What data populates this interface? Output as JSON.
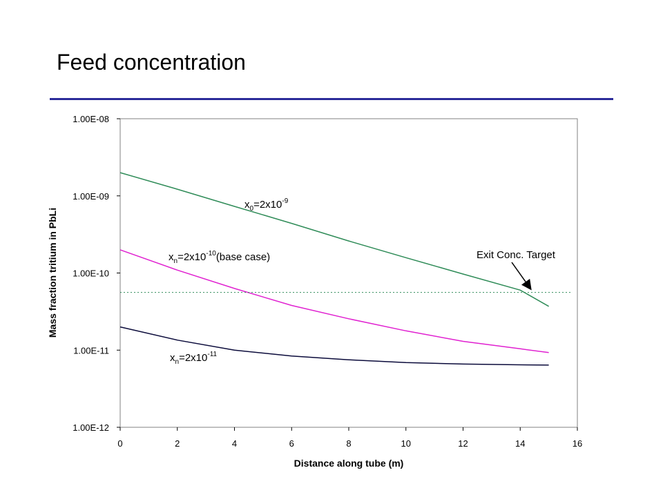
{
  "slide": {
    "title": "Feed concentration"
  },
  "chart_data": {
    "type": "line",
    "title": "",
    "xlabel": "Distance along tube (m)",
    "ylabel": "Mass fraction tritium in PbLi",
    "xlim": [
      0,
      16
    ],
    "ylim": [
      1e-12,
      1e-08
    ],
    "yscale": "log",
    "grid": false,
    "x_ticks": [
      "0",
      "2",
      "4",
      "6",
      "8",
      "10",
      "12",
      "14",
      "16"
    ],
    "y_ticks": [
      "1.00E-12",
      "1.00E-11",
      "1.00E-10",
      "1.00E-09",
      "1.00E-08"
    ],
    "series": [
      {
        "color": "#2e8b57",
        "x": [
          0,
          2,
          4,
          6,
          8,
          10,
          12,
          14,
          15
        ],
        "y": [
          2e-09,
          1.22e-09,
          7.3e-10,
          4.4e-10,
          2.6e-10,
          1.58e-10,
          9.7e-11,
          6e-11,
          3.7e-11
        ]
      },
      {
        "color": "#e020d0",
        "x": [
          0,
          2,
          4,
          6,
          8,
          10,
          12,
          14,
          15
        ],
        "y": [
          2e-10,
          1.09e-10,
          6.3e-11,
          3.8e-11,
          2.55e-11,
          1.78e-11,
          1.3e-11,
          1.04e-11,
          9.3e-12
        ]
      },
      {
        "color": "#0a0a3a",
        "x": [
          0,
          2,
          4,
          6,
          8,
          10,
          12,
          14,
          15
        ],
        "y": [
          2e-11,
          1.35e-11,
          1e-11,
          8.4e-12,
          7.5e-12,
          6.9e-12,
          6.6e-12,
          6.45e-12,
          6.4e-12
        ]
      }
    ],
    "target_line": {
      "y": 5.6e-11,
      "color": "#2e8b57",
      "style": "dotted"
    },
    "annotations": {
      "curve_high": {
        "pre": "x",
        "sub": "0",
        "mid": "=2x10",
        "sup": "-9",
        "post": ""
      },
      "curve_base": {
        "pre": "x",
        "sub": "n",
        "mid": "=2x10",
        "sup": "-10",
        "post": "(base case)"
      },
      "curve_low": {
        "pre": "x",
        "sub": "n",
        "mid": "=2x10",
        "sup": "-11",
        "post": ""
      },
      "target": "Exit Conc. Target"
    }
  }
}
